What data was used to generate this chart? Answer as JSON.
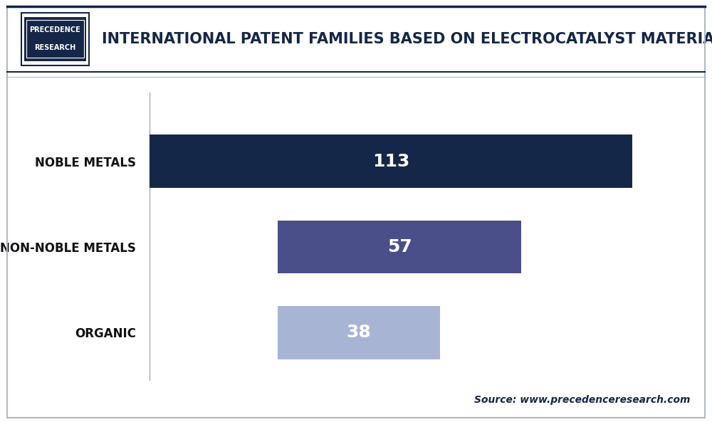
{
  "title": "INTERNATIONAL PATENT FAMILIES BASED ON ELECTROCATALYST MATERIAL",
  "categories": [
    "NOBLE METALS",
    "NON-NOBLE METALS",
    "ORGANIC"
  ],
  "values": [
    113,
    57,
    38
  ],
  "bar_lefts": [
    0,
    30,
    30
  ],
  "bar_colors": [
    "#152748",
    "#4a4f8a",
    "#a8b4d4"
  ],
  "label_color": "#ffffff",
  "bg_color": "#ffffff",
  "source_text": "Source: www.precedenceresearch.com",
  "source_color": "#152748",
  "title_color": "#152748",
  "bar_label_fontsize": 18,
  "category_fontsize": 12,
  "title_fontsize": 15,
  "xlim": [
    0,
    125
  ],
  "logo_text_line1": "PRECEDENCE",
  "logo_text_line2": "RESEARCH"
}
